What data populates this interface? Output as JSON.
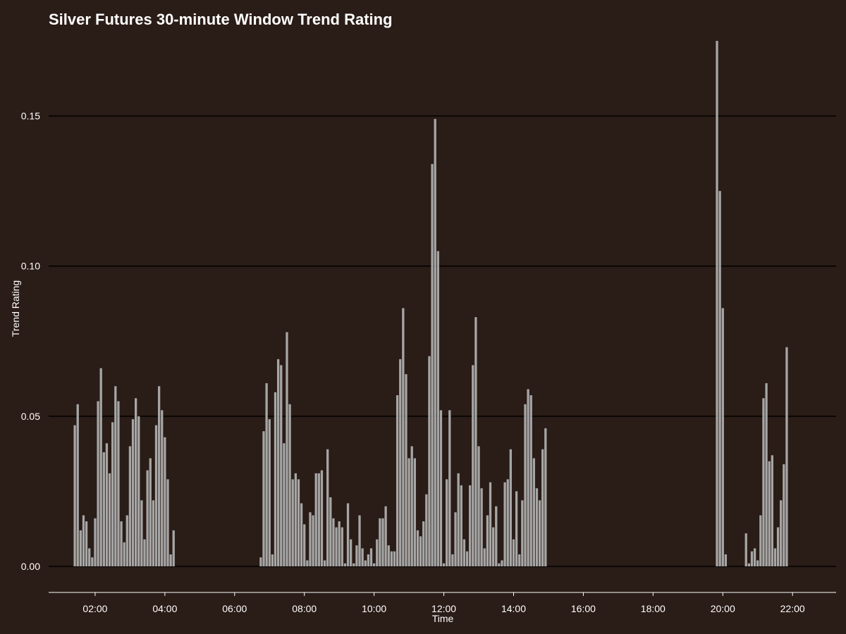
{
  "chart_data": {
    "type": "bar",
    "title": "Silver Futures 30-minute Window Trend Rating",
    "xlabel": "Time",
    "ylabel": "Trend Rating",
    "ylim": [
      0,
      0.175
    ],
    "xlim": [
      "00:40",
      "23:15"
    ],
    "y_ticks": [
      "0.00",
      "0.05",
      "0.10",
      "0.15"
    ],
    "x_ticks": [
      "02:00",
      "04:00",
      "06:00",
      "08:00",
      "10:00",
      "12:00",
      "14:00",
      "16:00",
      "18:00",
      "20:00",
      "22:00"
    ],
    "grid": "horizontal major",
    "colors": {
      "background": "#2a1c16",
      "bar": "#a6a6a6",
      "grid": "#000000",
      "axis": "#ffffff",
      "text": "#ffffff"
    },
    "bar_width_minutes": 4,
    "data": [
      [
        "01:25",
        0.047
      ],
      [
        "01:30",
        0.054
      ],
      [
        "01:35",
        0.012
      ],
      [
        "01:40",
        0.017
      ],
      [
        "01:45",
        0.015
      ],
      [
        "01:50",
        0.006
      ],
      [
        "01:55",
        0.003
      ],
      [
        "02:00",
        0.016
      ],
      [
        "02:05",
        0.055
      ],
      [
        "02:10",
        0.066
      ],
      [
        "02:15",
        0.038
      ],
      [
        "02:20",
        0.041
      ],
      [
        "02:25",
        0.031
      ],
      [
        "02:30",
        0.048
      ],
      [
        "02:35",
        0.06
      ],
      [
        "02:40",
        0.055
      ],
      [
        "02:45",
        0.015
      ],
      [
        "02:50",
        0.008
      ],
      [
        "02:55",
        0.017
      ],
      [
        "03:00",
        0.04
      ],
      [
        "03:05",
        0.049
      ],
      [
        "03:10",
        0.056
      ],
      [
        "03:15",
        0.05
      ],
      [
        "03:20",
        0.022
      ],
      [
        "03:25",
        0.009
      ],
      [
        "03:30",
        0.032
      ],
      [
        "03:35",
        0.036
      ],
      [
        "03:40",
        0.022
      ],
      [
        "03:45",
        0.047
      ],
      [
        "03:50",
        0.06
      ],
      [
        "03:55",
        0.052
      ],
      [
        "04:00",
        0.043
      ],
      [
        "04:05",
        0.029
      ],
      [
        "04:10",
        0.004
      ],
      [
        "04:15",
        0.012
      ],
      [
        "06:45",
        0.003
      ],
      [
        "06:50",
        0.045
      ],
      [
        "06:55",
        0.061
      ],
      [
        "07:00",
        0.049
      ],
      [
        "07:05",
        0.004
      ],
      [
        "07:10",
        0.058
      ],
      [
        "07:15",
        0.069
      ],
      [
        "07:20",
        0.067
      ],
      [
        "07:25",
        0.041
      ],
      [
        "07:30",
        0.078
      ],
      [
        "07:35",
        0.054
      ],
      [
        "07:40",
        0.029
      ],
      [
        "07:45",
        0.031
      ],
      [
        "07:50",
        0.029
      ],
      [
        "07:55",
        0.021
      ],
      [
        "08:00",
        0.014
      ],
      [
        "08:05",
        0.002
      ],
      [
        "08:10",
        0.018
      ],
      [
        "08:15",
        0.017
      ],
      [
        "08:20",
        0.031
      ],
      [
        "08:25",
        0.031
      ],
      [
        "08:30",
        0.032
      ],
      [
        "08:35",
        0.002
      ],
      [
        "08:40",
        0.039
      ],
      [
        "08:45",
        0.023
      ],
      [
        "08:50",
        0.016
      ],
      [
        "08:55",
        0.013
      ],
      [
        "09:00",
        0.015
      ],
      [
        "09:05",
        0.013
      ],
      [
        "09:10",
        0.001
      ],
      [
        "09:15",
        0.021
      ],
      [
        "09:20",
        0.009
      ],
      [
        "09:25",
        0.001
      ],
      [
        "09:30",
        0.007
      ],
      [
        "09:35",
        0.017
      ],
      [
        "09:40",
        0.006
      ],
      [
        "09:45",
        0.002
      ],
      [
        "09:50",
        0.004
      ],
      [
        "09:55",
        0.006
      ],
      [
        "10:00",
        0.001
      ],
      [
        "10:05",
        0.009
      ],
      [
        "10:10",
        0.016
      ],
      [
        "10:15",
        0.016
      ],
      [
        "10:20",
        0.02
      ],
      [
        "10:25",
        0.007
      ],
      [
        "10:30",
        0.005
      ],
      [
        "10:35",
        0.005
      ],
      [
        "10:40",
        0.057
      ],
      [
        "10:45",
        0.069
      ],
      [
        "10:50",
        0.086
      ],
      [
        "10:55",
        0.064
      ],
      [
        "11:00",
        0.036
      ],
      [
        "11:05",
        0.04
      ],
      [
        "11:10",
        0.036
      ],
      [
        "11:15",
        0.012
      ],
      [
        "11:20",
        0.01
      ],
      [
        "11:25",
        0.015
      ],
      [
        "11:30",
        0.024
      ],
      [
        "11:35",
        0.07
      ],
      [
        "11:40",
        0.134
      ],
      [
        "11:45",
        0.149
      ],
      [
        "11:50",
        0.105
      ],
      [
        "11:55",
        0.052
      ],
      [
        "12:00",
        0.001
      ],
      [
        "12:05",
        0.029
      ],
      [
        "12:10",
        0.052
      ],
      [
        "12:15",
        0.004
      ],
      [
        "12:20",
        0.018
      ],
      [
        "12:25",
        0.031
      ],
      [
        "12:30",
        0.027
      ],
      [
        "12:35",
        0.009
      ],
      [
        "12:40",
        0.005
      ],
      [
        "12:45",
        0.027
      ],
      [
        "12:50",
        0.067
      ],
      [
        "12:55",
        0.083
      ],
      [
        "13:00",
        0.04
      ],
      [
        "13:05",
        0.026
      ],
      [
        "13:10",
        0.006
      ],
      [
        "13:15",
        0.017
      ],
      [
        "13:20",
        0.028
      ],
      [
        "13:25",
        0.013
      ],
      [
        "13:30",
        0.02
      ],
      [
        "13:35",
        0.001
      ],
      [
        "13:40",
        0.002
      ],
      [
        "13:45",
        0.028
      ],
      [
        "13:50",
        0.029
      ],
      [
        "13:55",
        0.039
      ],
      [
        "14:00",
        0.009
      ],
      [
        "14:05",
        0.025
      ],
      [
        "14:10",
        0.004
      ],
      [
        "14:15",
        0.022
      ],
      [
        "14:20",
        0.054
      ],
      [
        "14:25",
        0.059
      ],
      [
        "14:30",
        0.057
      ],
      [
        "14:35",
        0.036
      ],
      [
        "14:40",
        0.026
      ],
      [
        "14:45",
        0.022
      ],
      [
        "14:50",
        0.039
      ],
      [
        "14:55",
        0.046
      ],
      [
        "19:50",
        0.175
      ],
      [
        "19:55",
        0.125
      ],
      [
        "20:00",
        0.086
      ],
      [
        "20:05",
        0.004
      ],
      [
        "20:40",
        0.011
      ],
      [
        "20:45",
        0.001
      ],
      [
        "20:50",
        0.005
      ],
      [
        "20:55",
        0.006
      ],
      [
        "21:00",
        0.002
      ],
      [
        "21:05",
        0.017
      ],
      [
        "21:10",
        0.056
      ],
      [
        "21:15",
        0.061
      ],
      [
        "21:20",
        0.035
      ],
      [
        "21:25",
        0.037
      ],
      [
        "21:30",
        0.006
      ],
      [
        "21:35",
        0.013
      ],
      [
        "21:40",
        0.022
      ],
      [
        "21:45",
        0.034
      ],
      [
        "21:50",
        0.073
      ]
    ]
  }
}
